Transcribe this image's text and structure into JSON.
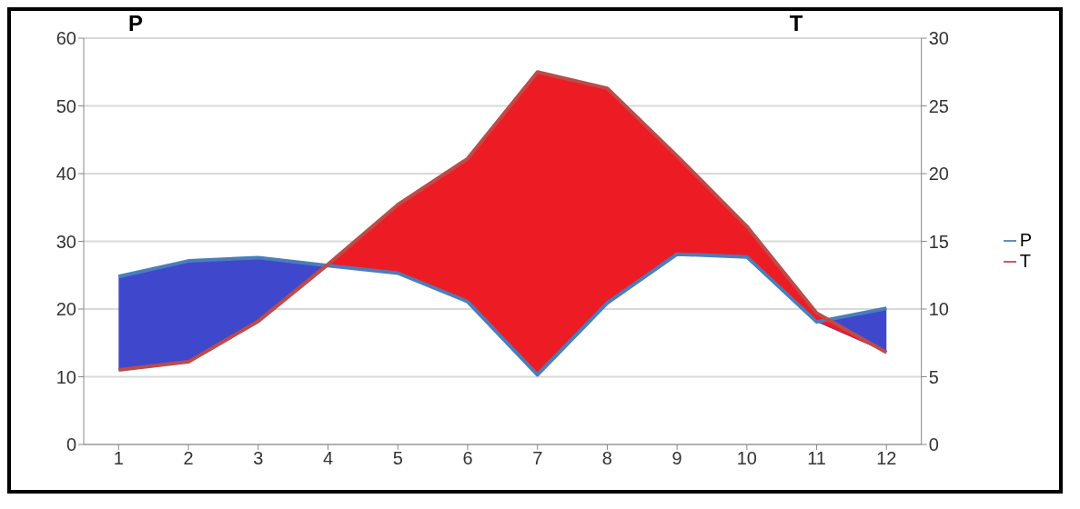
{
  "chart_data": {
    "type": "line",
    "ylabel": "P",
    "y2label": "T",
    "x": [
      1,
      2,
      3,
      4,
      5,
      6,
      7,
      8,
      9,
      10,
      11,
      12
    ],
    "xlim": [
      0.5,
      12.5
    ],
    "xticks": [
      1,
      2,
      3,
      4,
      5,
      6,
      7,
      8,
      9,
      10,
      11,
      12
    ],
    "ylim": [
      0,
      60
    ],
    "yticks": [
      0,
      10,
      20,
      30,
      40,
      50,
      60
    ],
    "y2lim": [
      0,
      30
    ],
    "y2ticks": [
      0,
      5,
      10,
      15,
      20,
      25,
      30
    ],
    "series": [
      {
        "name": "P",
        "color": "#4a7ebb",
        "values": [
          24.8,
          27.1,
          27.6,
          26.4,
          25.3,
          21.1,
          10.3,
          20.9,
          28.1,
          27.7,
          18.1,
          20.1
        ],
        "lower": [
          11.0,
          12.2,
          18.2,
          26.4,
          25.3,
          21.1,
          10.3,
          20.9,
          28.1,
          27.7,
          18.1,
          13.6
        ],
        "upper": [
          24.8,
          27.1,
          27.6,
          26.4,
          25.3,
          21.1,
          10.3,
          20.9,
          28.1,
          27.7,
          18.1,
          20.1
        ]
      },
      {
        "name": "T",
        "color": "#be4b48",
        "axis": "y2",
        "values": [
          5.5,
          6.1,
          9.1,
          13.3,
          17.7,
          21.1,
          27.5,
          26.3,
          21.3,
          16.1,
          9.7,
          6.8
        ],
        "lower": [
          5.5,
          6.1,
          9.1,
          13.2,
          12.7,
          10.6,
          5.2,
          10.5,
          14.1,
          13.9,
          9.1,
          6.8
        ],
        "upper": [
          5.5,
          6.1,
          9.1,
          13.3,
          17.7,
          21.1,
          27.5,
          26.3,
          21.3,
          16.1,
          9.7,
          6.8
        ]
      }
    ],
    "grid": "y",
    "legend": "right",
    "marker": "none",
    "line_style": "solid"
  }
}
